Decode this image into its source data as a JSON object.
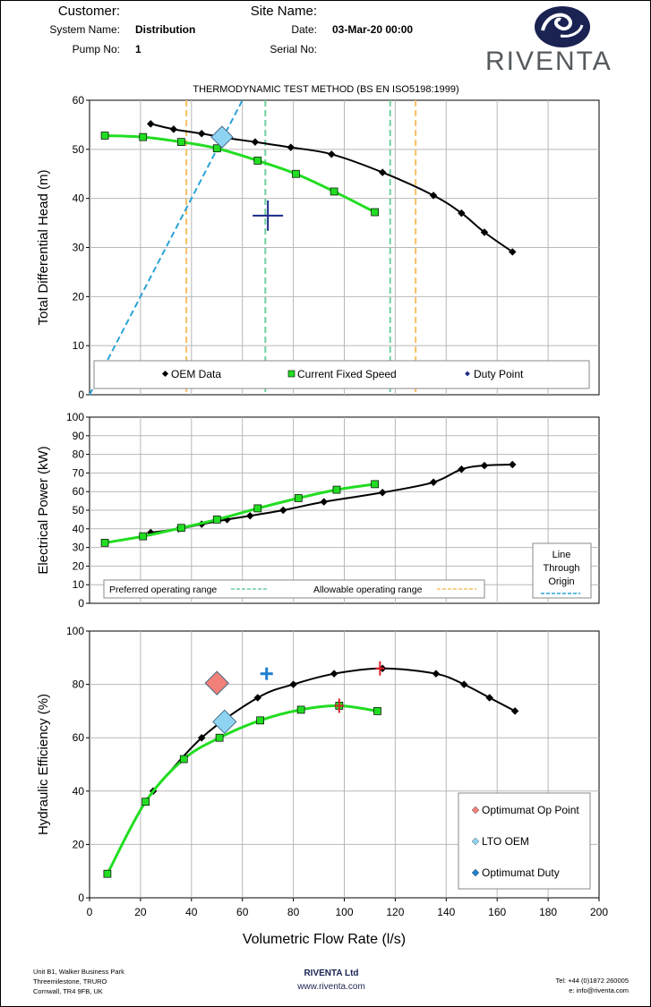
{
  "header": {
    "customer_label": "Customer:",
    "site_label": "Site Name:",
    "system_label": "System Name:",
    "system_value": "Distribution",
    "date_label": "Date:",
    "date_value": "03-Mar-20 00:00",
    "pump_label": "Pump No:",
    "pump_value": "1",
    "serial_label": "Serial No:"
  },
  "logo": {
    "text": "RIVENTA",
    "color": "#1a2352"
  },
  "footer": {
    "address_line1": "Unit B1, Walker Business Park",
    "address_line2": "Threemilestone, TRURO",
    "address_line3": "Cornwall, TR4 9FB, UK",
    "company": "RIVENTA Ltd",
    "website": "www.riventa.com",
    "tel": "Tel: +44 (0)1872 260005",
    "email": "e: info@riventa.com"
  },
  "chart_data": [
    {
      "type": "line",
      "title": "THERMODYNAMIC TEST METHOD (BS EN ISO5198:1999)",
      "xlabel": "Volumetric Flow Rate (l/s)",
      "ylabel": "Total Differential Head (m)",
      "xlim": [
        0,
        200
      ],
      "ylim": [
        0,
        60
      ],
      "yticks": [
        "0",
        "10",
        "20",
        "30",
        "40",
        "50",
        "60"
      ],
      "series": [
        {
          "name": "OEM Data",
          "color": "#000000",
          "x": [
            24,
            33,
            44,
            54,
            65,
            79,
            95,
            115,
            135,
            146,
            155,
            166
          ],
          "y": [
            55.2,
            54.1,
            53.2,
            52.3,
            51.5,
            50.4,
            49.0,
            45.3,
            40.6,
            37.0,
            33.1,
            29.1
          ]
        },
        {
          "name": "Current Fixed Speed",
          "color": "#22dd22",
          "x": [
            6,
            21,
            36,
            50,
            66,
            81,
            96,
            112
          ],
          "y": [
            52.8,
            52.5,
            51.5,
            50.2,
            47.7,
            45.0,
            41.4,
            37.2
          ]
        }
      ],
      "duty_point": {
        "name": "Duty Point",
        "x": 70,
        "y": 36.5
      },
      "lto_point": {
        "x": 52,
        "y": 52.5
      },
      "origin_line": {
        "x": [
          0,
          60
        ],
        "y": [
          0,
          60
        ]
      },
      "preferred_range": [
        69,
        118
      ],
      "allowable_range": [
        38,
        128
      ],
      "legend": [
        "OEM Data",
        "Current Fixed Speed",
        "Duty Point"
      ]
    },
    {
      "type": "line",
      "ylabel": "Electrical Power (kW)",
      "xlim": [
        0,
        200
      ],
      "ylim": [
        0,
        100
      ],
      "yticks": [
        "0",
        "10",
        "20",
        "30",
        "40",
        "50",
        "60",
        "70",
        "80",
        "90",
        "100"
      ],
      "series": [
        {
          "name": "OEM Data",
          "color": "#000000",
          "x": [
            24,
            35,
            44,
            54,
            63,
            76,
            92,
            115,
            135,
            146,
            155,
            166
          ],
          "y": [
            38,
            40,
            42.5,
            45,
            47,
            50,
            54.5,
            59.5,
            65,
            72,
            74,
            74.5
          ]
        },
        {
          "name": "Current Fixed Speed",
          "color": "#22dd22",
          "x": [
            6,
            21,
            36,
            50,
            66,
            82,
            97,
            112
          ],
          "y": [
            32.5,
            36,
            40.5,
            45,
            51,
            56.5,
            61,
            64
          ]
        }
      ],
      "legend": {
        "preferred": "Preferred operating range",
        "allowable": "Allowable operating range",
        "origin_line": "Line Through Origin"
      }
    },
    {
      "type": "line",
      "ylabel": "Hydraulic Efficiency (%)",
      "xlabel": "Volumetric Flow Rate (l/s)",
      "xlim": [
        0,
        200
      ],
      "ylim": [
        0,
        100
      ],
      "yticks": [
        "0",
        "20",
        "40",
        "60",
        "80",
        "100"
      ],
      "xticks": [
        "0",
        "20",
        "40",
        "60",
        "80",
        "100",
        "120",
        "140",
        "160",
        "180",
        "200"
      ],
      "series": [
        {
          "name": "OEM Data",
          "color": "#000000",
          "x": [
            25,
            44,
            66,
            80,
            96,
            115,
            136,
            147,
            157,
            167
          ],
          "y": [
            40,
            60,
            75,
            80,
            84,
            86,
            84,
            80,
            75,
            70
          ]
        },
        {
          "name": "Current Fixed Speed",
          "color": "#22dd22",
          "x": [
            7,
            22,
            37,
            51,
            67,
            83,
            98,
            113
          ],
          "y": [
            9,
            36,
            52,
            60,
            66.5,
            70.5,
            72,
            70
          ]
        }
      ],
      "optimumat_op_point": {
        "name": "Optimumat Op Point",
        "x": 50,
        "y": 80.5
      },
      "lto_oem": {
        "name": "LTO OEM",
        "x": 53,
        "y": 66
      },
      "optimumat_duty": {
        "name": "Optimumat Duty",
        "x": 69.5,
        "y": 84
      },
      "bep_oem": {
        "x": 114,
        "y": 86
      },
      "bep_current": {
        "x": 98,
        "y": 72
      },
      "legend": [
        "Optimumat Op Point",
        "LTO OEM",
        "Optimumat Duty"
      ]
    }
  ]
}
